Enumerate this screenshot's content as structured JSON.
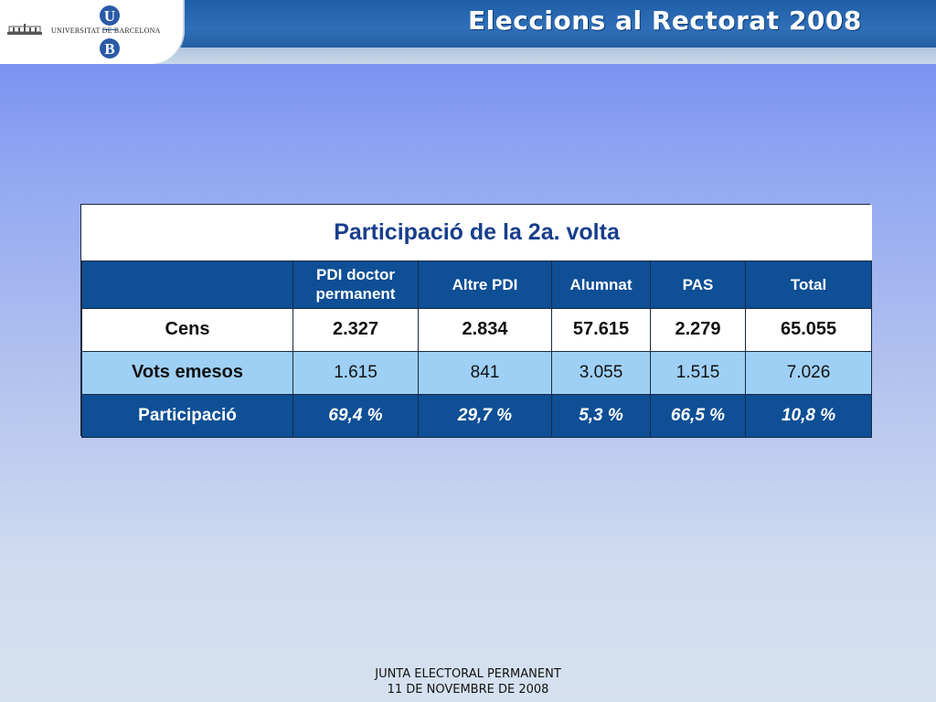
{
  "header": {
    "university_name": "UNIVERSITAT DE BARCELONA",
    "logo_letter_top": "U",
    "logo_letter_bottom": "B",
    "title": "Eleccions al Rectorat 2008"
  },
  "table": {
    "title": "Participació de la 2a. volta",
    "columns": [
      "",
      "PDI doctor permanent",
      "Altre PDI",
      "Alumnat",
      "PAS",
      "Total"
    ],
    "rows": [
      {
        "label": "Cens",
        "values": [
          "2.327",
          "2.834",
          "57.615",
          "2.279",
          "65.055"
        ]
      },
      {
        "label": "Vots emesos",
        "values": [
          "1.615",
          "841",
          "3.055",
          "1.515",
          "7.026"
        ]
      },
      {
        "label": "Participació",
        "values": [
          "69,4 %",
          "29,7 %",
          "5,3 %",
          "66,5 %",
          "10,8 %"
        ]
      }
    ]
  },
  "footer": {
    "line1": "JUNTA ELECTORAL PERMANENT",
    "line2": "11 DE NOVEMBRE DE 2008"
  },
  "colors": {
    "header_blue": "#1f5fa8",
    "table_dark_blue": "#0e4f96",
    "table_light_blue": "#9ed0f5",
    "title_blue": "#173e8c"
  }
}
